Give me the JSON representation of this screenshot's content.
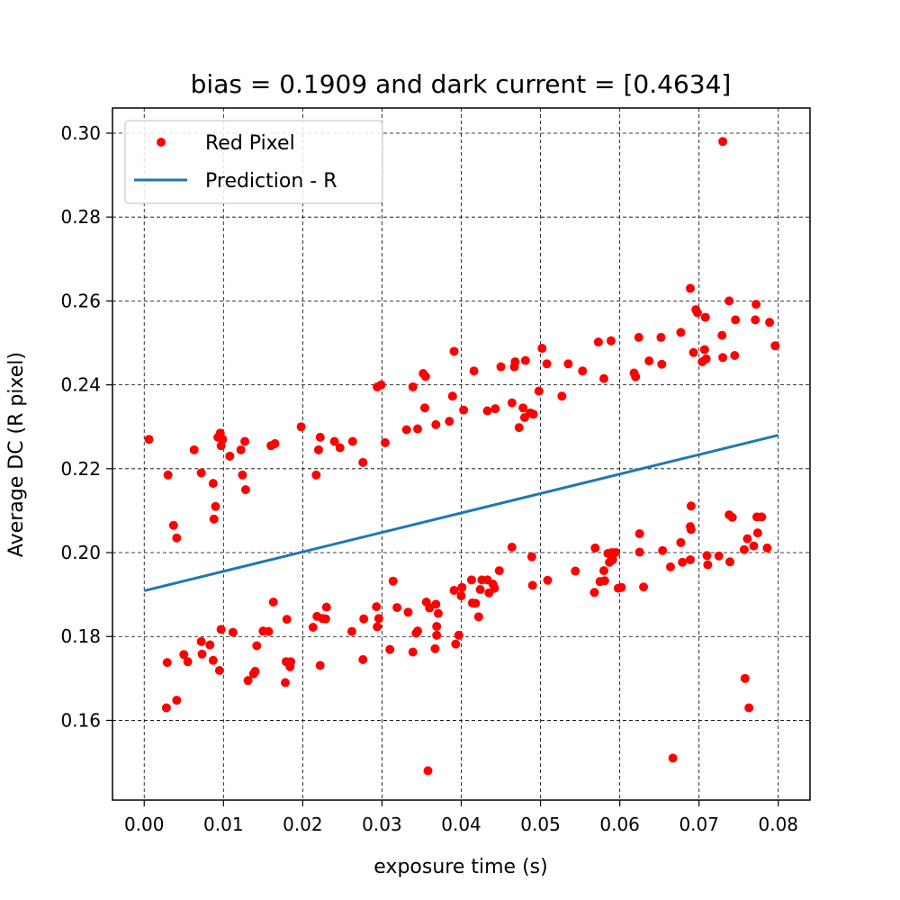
{
  "chart_data": {
    "type": "scatter",
    "title": "bias = 0.1909 and dark current = [0.4634]",
    "xlabel": "exposure time (s)",
    "ylabel": "Average DC (R pixel)",
    "xlim": [
      -0.004,
      0.084
    ],
    "ylim": [
      0.141,
      0.306
    ],
    "xticks": [
      0.0,
      0.01,
      0.02,
      0.03,
      0.04,
      0.05,
      0.06,
      0.07,
      0.08
    ],
    "xtick_labels": [
      "0.00",
      "0.01",
      "0.02",
      "0.03",
      "0.04",
      "0.05",
      "0.06",
      "0.07",
      "0.08"
    ],
    "yticks": [
      0.16,
      0.18,
      0.2,
      0.22,
      0.24,
      0.26,
      0.28,
      0.3
    ],
    "ytick_labels": [
      "0.16",
      "0.18",
      "0.20",
      "0.22",
      "0.24",
      "0.26",
      "0.28",
      "0.30"
    ],
    "grid": true,
    "legend": {
      "position": "top-left",
      "entries": [
        "Red Pixel",
        "Prediction - R"
      ]
    },
    "series": [
      {
        "name": "Red Pixel",
        "kind": "scatter",
        "color": "#ff0000",
        "points": [
          [
            0.0006,
            0.227
          ],
          [
            0.003,
            0.2185
          ],
          [
            0.0037,
            0.2065
          ],
          [
            0.0041,
            0.2035
          ],
          [
            0.0063,
            0.2245
          ],
          [
            0.0072,
            0.219
          ],
          [
            0.0087,
            0.2165
          ],
          [
            0.0088,
            0.208
          ],
          [
            0.009,
            0.211
          ],
          [
            0.0093,
            0.2275
          ],
          [
            0.0096,
            0.2285
          ],
          [
            0.0097,
            0.2255
          ],
          [
            0.0099,
            0.227
          ],
          [
            0.0108,
            0.223
          ],
          [
            0.0122,
            0.2245
          ],
          [
            0.0124,
            0.2185
          ],
          [
            0.0127,
            0.2265
          ],
          [
            0.0128,
            0.215
          ],
          [
            0.016,
            0.2255
          ],
          [
            0.0165,
            0.226
          ],
          [
            0.0198,
            0.23
          ],
          [
            0.0217,
            0.2185
          ],
          [
            0.022,
            0.2245
          ],
          [
            0.0222,
            0.2275
          ],
          [
            0.024,
            0.2265
          ],
          [
            0.0247,
            0.225
          ],
          [
            0.0263,
            0.2265
          ],
          [
            0.0276,
            0.2215
          ],
          [
            0.0294,
            0.2395
          ],
          [
            0.0299,
            0.24
          ],
          [
            0.0304,
            0.2262
          ],
          [
            0.0331,
            0.2293
          ],
          [
            0.0339,
            0.2395
          ],
          [
            0.0345,
            0.2295
          ],
          [
            0.0352,
            0.2427
          ],
          [
            0.0354,
            0.2345
          ],
          [
            0.0355,
            0.242
          ],
          [
            0.0368,
            0.2305
          ],
          [
            0.0385,
            0.2313
          ],
          [
            0.0389,
            0.2373
          ],
          [
            0.0391,
            0.248
          ],
          [
            0.0403,
            0.234
          ],
          [
            0.0416,
            0.2433
          ],
          [
            0.0433,
            0.2338
          ],
          [
            0.0443,
            0.2343
          ],
          [
            0.045,
            0.2443
          ],
          [
            0.0464,
            0.2357
          ],
          [
            0.0467,
            0.2443
          ],
          [
            0.0468,
            0.2455
          ],
          [
            0.0473,
            0.2298
          ],
          [
            0.0478,
            0.2345
          ],
          [
            0.048,
            0.2322
          ],
          [
            0.0481,
            0.2458
          ],
          [
            0.0487,
            0.2333
          ],
          [
            0.0491,
            0.233
          ],
          [
            0.0498,
            0.2385
          ],
          [
            0.0502,
            0.2487
          ],
          [
            0.0508,
            0.245
          ],
          [
            0.0527,
            0.2373
          ],
          [
            0.0535,
            0.245
          ],
          [
            0.0553,
            0.2433
          ],
          [
            0.0573,
            0.2502
          ],
          [
            0.058,
            0.2415
          ],
          [
            0.0589,
            0.2505
          ],
          [
            0.0618,
            0.2428
          ],
          [
            0.062,
            0.2419
          ],
          [
            0.0624,
            0.2513
          ],
          [
            0.0637,
            0.2457
          ],
          [
            0.0652,
            0.2513
          ],
          [
            0.0653,
            0.2449
          ],
          [
            0.0677,
            0.2525
          ],
          [
            0.0689,
            0.263
          ],
          [
            0.0693,
            0.2477
          ],
          [
            0.0696,
            0.2579
          ],
          [
            0.0698,
            0.2572
          ],
          [
            0.0704,
            0.2455
          ],
          [
            0.0707,
            0.2484
          ],
          [
            0.0708,
            0.2561
          ],
          [
            0.0709,
            0.2462
          ],
          [
            0.0729,
            0.2518
          ],
          [
            0.073,
            0.2465
          ],
          [
            0.0738,
            0.26
          ],
          [
            0.0745,
            0.247
          ],
          [
            0.0746,
            0.2555
          ],
          [
            0.0771,
            0.2555
          ],
          [
            0.0772,
            0.2592
          ],
          [
            0.0789,
            0.2549
          ],
          [
            0.0796,
            0.2493
          ],
          [
            0.0028,
            0.163
          ],
          [
            0.0029,
            0.1738
          ],
          [
            0.0041,
            0.1648
          ],
          [
            0.005,
            0.1757
          ],
          [
            0.0055,
            0.174
          ],
          [
            0.0072,
            0.1788
          ],
          [
            0.0073,
            0.1758
          ],
          [
            0.0083,
            0.178
          ],
          [
            0.0087,
            0.1743
          ],
          [
            0.0095,
            0.1719
          ],
          [
            0.0097,
            0.1817
          ],
          [
            0.0112,
            0.181
          ],
          [
            0.0131,
            0.1695
          ],
          [
            0.0138,
            0.1711
          ],
          [
            0.014,
            0.1717
          ],
          [
            0.0142,
            0.1778
          ],
          [
            0.015,
            0.1813
          ],
          [
            0.0157,
            0.1812
          ],
          [
            0.0163,
            0.1882
          ],
          [
            0.0178,
            0.169
          ],
          [
            0.0179,
            0.174
          ],
          [
            0.018,
            0.1841
          ],
          [
            0.0184,
            0.1728
          ],
          [
            0.0185,
            0.174
          ],
          [
            0.0213,
            0.1822
          ],
          [
            0.0218,
            0.1848
          ],
          [
            0.0222,
            0.1731
          ],
          [
            0.0225,
            0.1843
          ],
          [
            0.0229,
            0.1842
          ],
          [
            0.023,
            0.187
          ],
          [
            0.0262,
            0.1812
          ],
          [
            0.0276,
            0.1745
          ],
          [
            0.0277,
            0.1842
          ],
          [
            0.0293,
            0.1871
          ],
          [
            0.0294,
            0.1823
          ],
          [
            0.0296,
            0.1843
          ],
          [
            0.031,
            0.1769
          ],
          [
            0.0314,
            0.1932
          ],
          [
            0.0319,
            0.1869
          ],
          [
            0.0333,
            0.1858
          ],
          [
            0.0339,
            0.1763
          ],
          [
            0.0343,
            0.1808
          ],
          [
            0.0345,
            0.1813
          ],
          [
            0.0356,
            0.1882
          ],
          [
            0.0358,
            0.148
          ],
          [
            0.036,
            0.1868
          ],
          [
            0.0367,
            0.1771
          ],
          [
            0.0368,
            0.1877
          ],
          [
            0.0369,
            0.1824
          ],
          [
            0.0369,
            0.1803
          ],
          [
            0.0371,
            0.1855
          ],
          [
            0.0391,
            0.191
          ],
          [
            0.0393,
            0.1782
          ],
          [
            0.0397,
            0.1803
          ],
          [
            0.04,
            0.1897
          ],
          [
            0.0401,
            0.1917
          ],
          [
            0.0413,
            0.1935
          ],
          [
            0.0414,
            0.188
          ],
          [
            0.0418,
            0.1879
          ],
          [
            0.0422,
            0.1847
          ],
          [
            0.0424,
            0.1912
          ],
          [
            0.0426,
            0.1935
          ],
          [
            0.0433,
            0.1935
          ],
          [
            0.0435,
            0.1904
          ],
          [
            0.044,
            0.1925
          ],
          [
            0.0442,
            0.1915
          ],
          [
            0.0448,
            0.1957
          ],
          [
            0.0464,
            0.2013
          ],
          [
            0.0489,
            0.199
          ],
          [
            0.049,
            0.1922
          ],
          [
            0.0509,
            0.1934
          ],
          [
            0.0544,
            0.1956
          ],
          [
            0.0568,
            0.1905
          ],
          [
            0.0569,
            0.2011
          ],
          [
            0.0575,
            0.1931
          ],
          [
            0.058,
            0.1957
          ],
          [
            0.0581,
            0.1933
          ],
          [
            0.0585,
            0.1998
          ],
          [
            0.0587,
            0.1977
          ],
          [
            0.059,
            0.2
          ],
          [
            0.0591,
            0.1983
          ],
          [
            0.0595,
            0.2
          ],
          [
            0.0598,
            0.1915
          ],
          [
            0.0602,
            0.1917
          ],
          [
            0.0625,
            0.2045
          ],
          [
            0.0625,
            0.2001
          ],
          [
            0.063,
            0.1918
          ],
          [
            0.0654,
            0.2005
          ],
          [
            0.0664,
            0.1966
          ],
          [
            0.0667,
            0.151
          ],
          [
            0.0677,
            0.2024
          ],
          [
            0.0679,
            0.1977
          ],
          [
            0.0689,
            0.1983
          ],
          [
            0.0689,
            0.2062
          ],
          [
            0.069,
            0.2055
          ],
          [
            0.069,
            0.2111
          ],
          [
            0.071,
            0.1993
          ],
          [
            0.0711,
            0.1971
          ],
          [
            0.0725,
            0.1992
          ],
          [
            0.0738,
            0.209
          ],
          [
            0.0739,
            0.1978
          ],
          [
            0.0742,
            0.2084
          ],
          [
            0.0757,
            0.2007
          ],
          [
            0.0758,
            0.17
          ],
          [
            0.0761,
            0.2033
          ],
          [
            0.0763,
            0.163
          ],
          [
            0.0769,
            0.2016
          ],
          [
            0.0773,
            0.2085
          ],
          [
            0.0774,
            0.2047
          ],
          [
            0.0779,
            0.2085
          ],
          [
            0.0786,
            0.2011
          ],
          [
            0.073,
            0.298
          ]
        ]
      },
      {
        "name": "Prediction - R",
        "kind": "line",
        "color": "#1f77b4",
        "x": [
          0.0,
          0.08
        ],
        "y": [
          0.1909,
          0.228
        ]
      }
    ]
  }
}
